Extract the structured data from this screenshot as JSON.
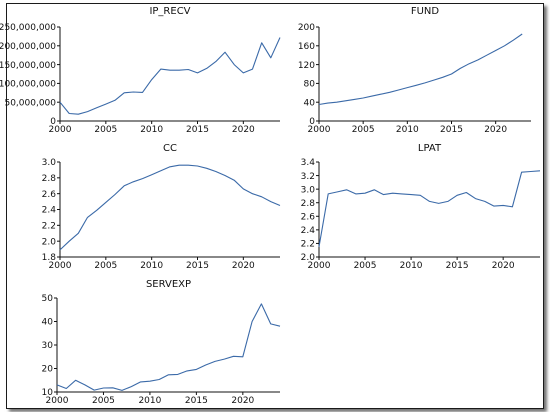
{
  "colors": {
    "line": "#3b6aa8",
    "axis": "#111111",
    "frame": "#1a1a1a"
  },
  "chart_data": [
    {
      "type": "line",
      "title": "IP_RECV",
      "xlim": [
        2000,
        2024
      ],
      "ylim": [
        0,
        250000000
      ],
      "xticks": [
        2000,
        2005,
        2010,
        2015,
        2020
      ],
      "xtick_labels": [
        "2000",
        "2005",
        "2010",
        "2015",
        "2020"
      ],
      "yticks": [
        0,
        50000000,
        100000000,
        150000000,
        200000000,
        250000000
      ],
      "ytick_labels": [
        "0",
        "50,000,000",
        "100,000,000",
        "150,000,000",
        "200,000,000",
        "250,000,000"
      ],
      "grid": false,
      "x": [
        2000,
        2001,
        2002,
        2003,
        2004,
        2005,
        2006,
        2007,
        2008,
        2009,
        2010,
        2011,
        2012,
        2013,
        2014,
        2015,
        2016,
        2017,
        2018,
        2019,
        2020,
        2021,
        2022,
        2023,
        2024
      ],
      "values": [
        50000000,
        20000000,
        18000000,
        25000000,
        35000000,
        45000000,
        55000000,
        75000000,
        77000000,
        76000000,
        110000000,
        138000000,
        135000000,
        135000000,
        137000000,
        128000000,
        140000000,
        158000000,
        183000000,
        150000000,
        128000000,
        138000000,
        208000000,
        168000000,
        222000000
      ]
    },
    {
      "type": "line",
      "title": "FUND",
      "xlim": [
        2000,
        2024
      ],
      "ylim": [
        0,
        200
      ],
      "xticks": [
        2000,
        2005,
        2010,
        2015,
        2020
      ],
      "xtick_labels": [
        "2000",
        "2005",
        "2010",
        "2015",
        "2020"
      ],
      "yticks": [
        0,
        40,
        80,
        120,
        160,
        200
      ],
      "ytick_labels": [
        "0",
        "40",
        "80",
        "120",
        "160",
        "200"
      ],
      "grid": false,
      "x": [
        2000,
        2001,
        2002,
        2003,
        2004,
        2005,
        2006,
        2007,
        2008,
        2009,
        2010,
        2011,
        2012,
        2013,
        2014,
        2015,
        2016,
        2017,
        2018,
        2019,
        2020,
        2021,
        2022,
        2023
      ],
      "values": [
        35,
        38,
        40,
        43,
        46,
        49,
        53,
        57,
        61,
        66,
        71,
        76,
        81,
        87,
        93,
        100,
        112,
        122,
        130,
        140,
        150,
        160,
        172,
        185
      ]
    },
    {
      "type": "line",
      "title": "CC",
      "xlim": [
        2000,
        2024
      ],
      "ylim": [
        1.8,
        3.0
      ],
      "xticks": [
        2000,
        2005,
        2010,
        2015,
        2020
      ],
      "xtick_labels": [
        "2000",
        "2005",
        "2010",
        "2015",
        "2020"
      ],
      "yticks": [
        1.8,
        2.0,
        2.2,
        2.4,
        2.6,
        2.8,
        3.0
      ],
      "ytick_labels": [
        "1.8",
        "2.0",
        "2.2",
        "2.4",
        "2.6",
        "2.8",
        "3.0"
      ],
      "grid": false,
      "x": [
        2000,
        2001,
        2002,
        2003,
        2004,
        2005,
        2006,
        2007,
        2008,
        2009,
        2010,
        2011,
        2012,
        2013,
        2014,
        2015,
        2016,
        2017,
        2018,
        2019,
        2020,
        2021,
        2022,
        2023,
        2024
      ],
      "values": [
        1.89,
        2.0,
        2.1,
        2.3,
        2.39,
        2.49,
        2.59,
        2.7,
        2.75,
        2.79,
        2.84,
        2.89,
        2.94,
        2.96,
        2.96,
        2.95,
        2.92,
        2.88,
        2.83,
        2.77,
        2.66,
        2.6,
        2.56,
        2.5,
        2.45
      ]
    },
    {
      "type": "line",
      "title": "LPAT",
      "xlim": [
        2000,
        2024
      ],
      "ylim": [
        2.0,
        3.4
      ],
      "xticks": [
        2000,
        2005,
        2010,
        2015,
        2020
      ],
      "xtick_labels": [
        "2000",
        "2005",
        "2010",
        "2015",
        "2020"
      ],
      "yticks": [
        2.0,
        2.2,
        2.4,
        2.6,
        2.8,
        3.0,
        3.2,
        3.4
      ],
      "ytick_labels": [
        "2.0",
        "2.2",
        "2.4",
        "2.6",
        "2.8",
        "3.0",
        "3.2",
        "3.4"
      ],
      "grid": false,
      "x": [
        2000,
        2001,
        2002,
        2003,
        2004,
        2005,
        2006,
        2007,
        2008,
        2009,
        2010,
        2011,
        2012,
        2013,
        2014,
        2015,
        2016,
        2017,
        2018,
        2019,
        2020,
        2021,
        2022,
        2023,
        2024
      ],
      "values": [
        2.15,
        2.93,
        2.96,
        2.99,
        2.93,
        2.94,
        2.99,
        2.92,
        2.94,
        2.93,
        2.92,
        2.91,
        2.82,
        2.79,
        2.82,
        2.91,
        2.95,
        2.86,
        2.82,
        2.75,
        2.76,
        2.74,
        3.25,
        3.26,
        3.27
      ]
    },
    {
      "type": "line",
      "title": "SERVEXP",
      "xlim": [
        2000,
        2024
      ],
      "ylim": [
        10,
        50
      ],
      "xticks": [
        2000,
        2005,
        2010,
        2015,
        2020
      ],
      "xtick_labels": [
        "2000",
        "2005",
        "2010",
        "2015",
        "2020"
      ],
      "yticks": [
        10,
        20,
        30,
        40,
        50
      ],
      "ytick_labels": [
        "10",
        "20",
        "30",
        "40",
        "50"
      ],
      "grid": false,
      "x": [
        2000,
        2001,
        2002,
        2003,
        2004,
        2005,
        2006,
        2007,
        2008,
        2009,
        2010,
        2011,
        2012,
        2013,
        2014,
        2015,
        2016,
        2017,
        2018,
        2019,
        2020,
        2021,
        2022,
        2023,
        2024
      ],
      "values": [
        13,
        11.5,
        15,
        13,
        10.8,
        11.7,
        11.8,
        10.7,
        12.3,
        14.3,
        14.6,
        15.3,
        17.3,
        17.5,
        19,
        19.6,
        21.5,
        23,
        24,
        25.2,
        25,
        40,
        47.5,
        39,
        38
      ]
    }
  ]
}
